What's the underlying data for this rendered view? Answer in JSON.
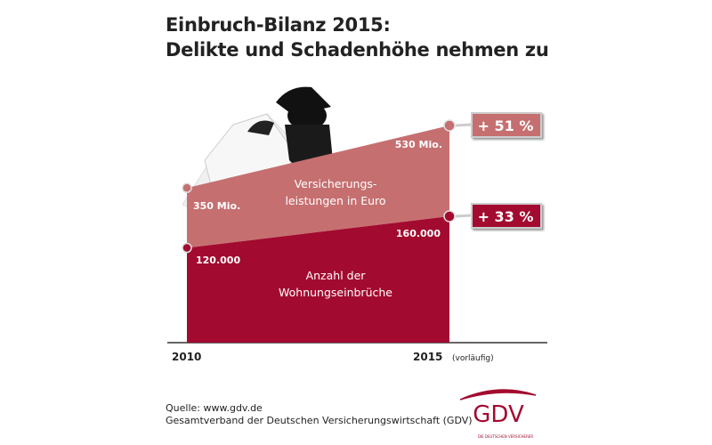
{
  "title_line1": "Einbruch-Bilanz 2015:",
  "title_line2": "Delikte und Schadenhöhe nehmen zu",
  "chart_data": {
    "type": "area",
    "title": "Einbruch-Bilanz 2015: Delikte und Schadenhöhe nehmen zu",
    "categories": [
      "2010",
      "2015"
    ],
    "x_suffix": "(vorläufig)",
    "series": [
      {
        "name": "Anzahl der Wohnungseinbrüche",
        "label_lines": [
          "Anzahl der",
          "Wohnungseinbrüche"
        ],
        "values": [
          120000,
          160000
        ],
        "value_labels": [
          "120.000",
          "160.000"
        ],
        "change": "+ 33 %",
        "color": "#a30a2f"
      },
      {
        "name": "Versicherungsleistungen in Euro",
        "label_lines": [
          "Versicherungs-",
          "leistungen in Euro"
        ],
        "values": [
          350,
          530
        ],
        "unit": "Mio. Euro",
        "value_labels": [
          "350 Mio.",
          "530 Mio."
        ],
        "change": "+ 51 %",
        "color": "#c66f70"
      }
    ],
    "stacked": true,
    "grid": false
  },
  "source_line1": "Quelle: www.gdv.de",
  "source_line2": "Gesamtverband der Deutschen Versicherungswirtschaft (GDV)",
  "logo_text": "GDV",
  "logo_subtext": "DIE DEUTSCHEN VERSICHERER"
}
